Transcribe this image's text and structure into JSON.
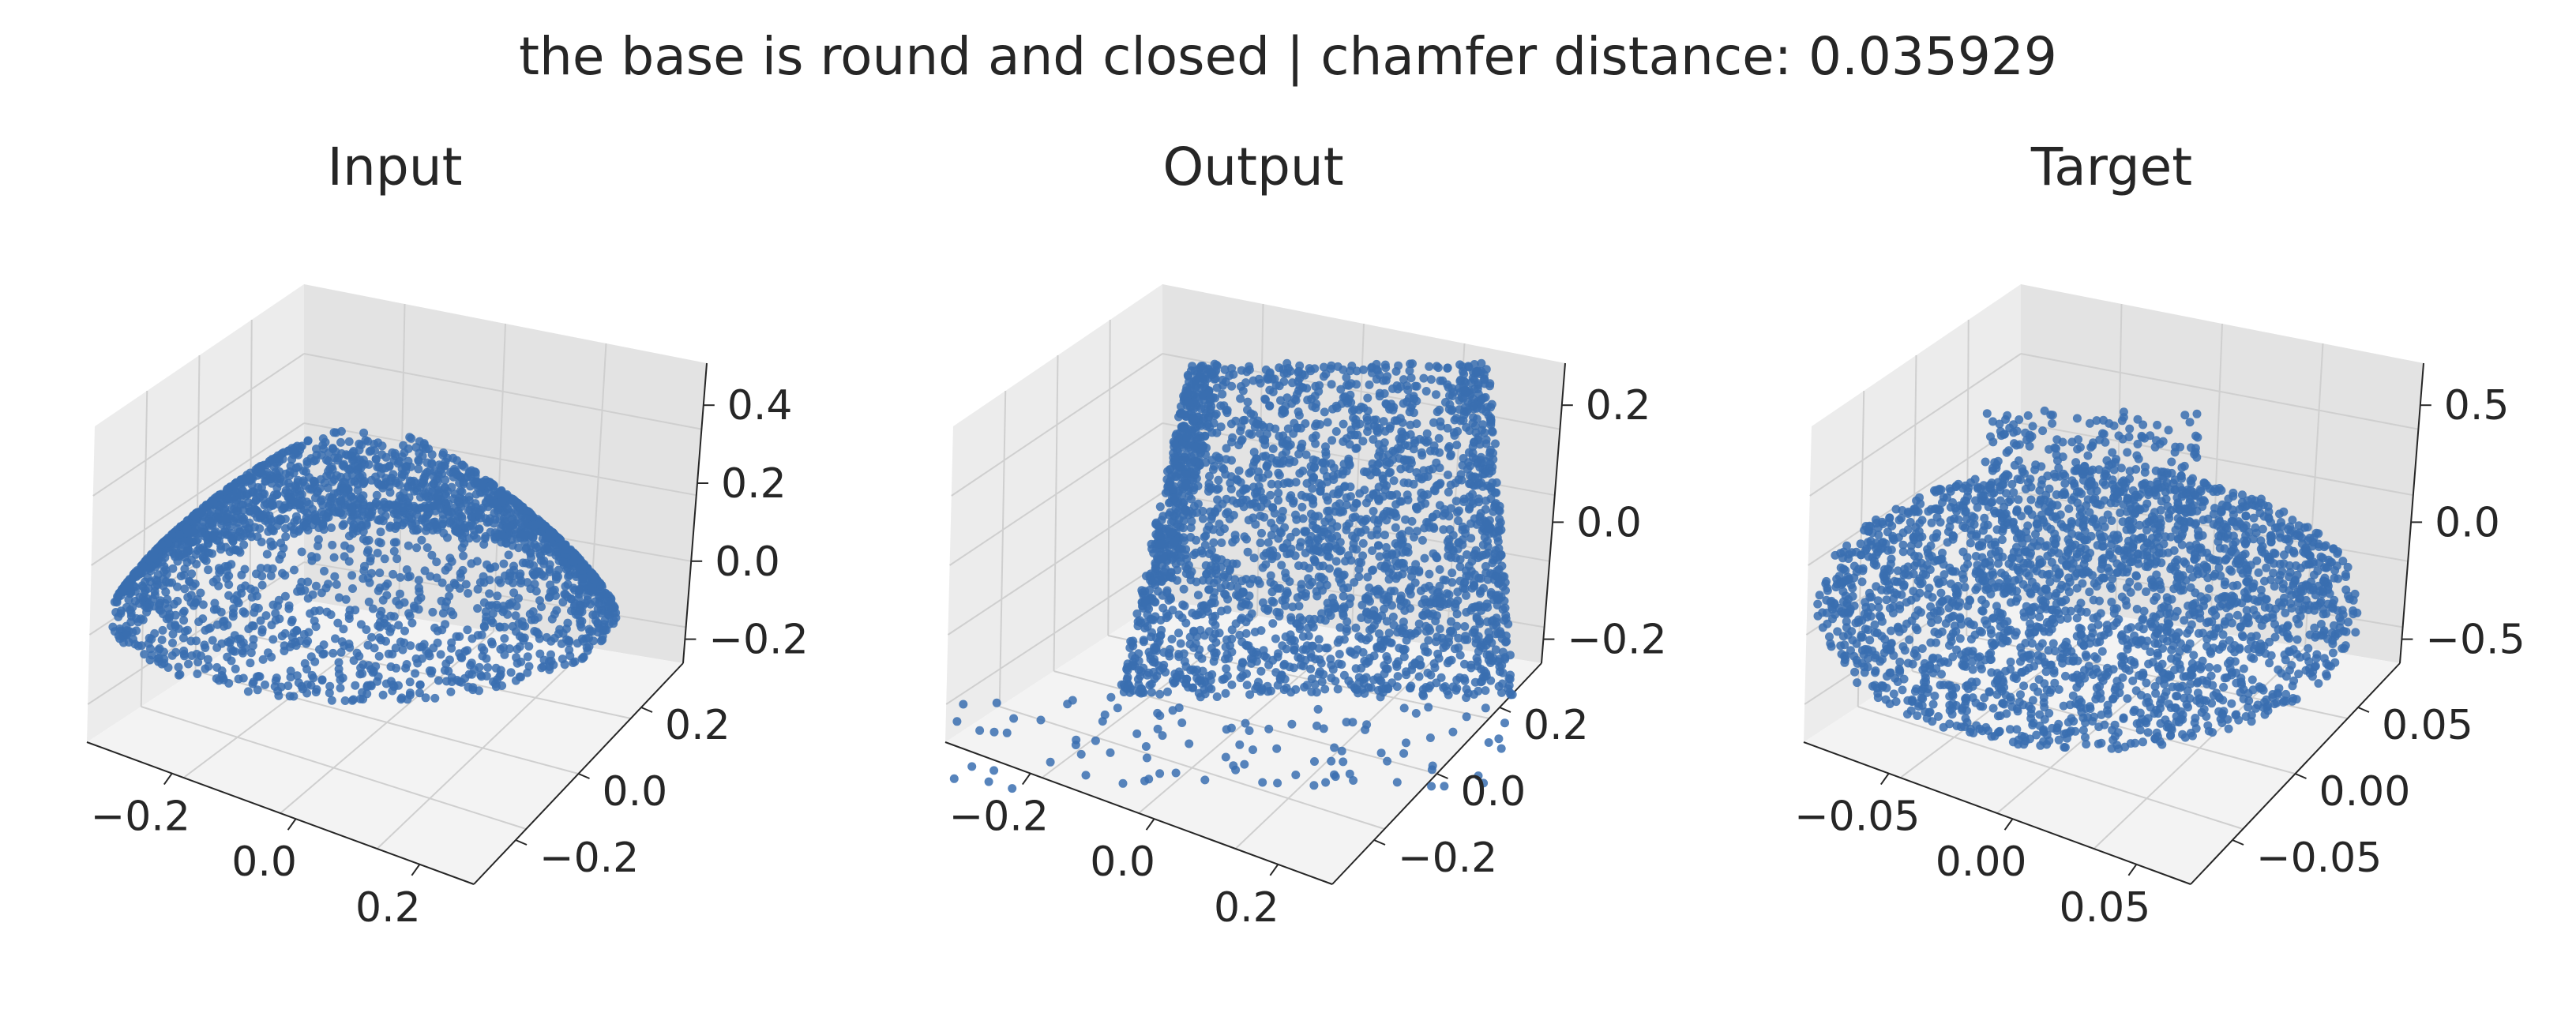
{
  "suptitle": "the base is round and closed | chamfer distance: 0.035929",
  "colors": {
    "points": "#3a6fb0",
    "pane_left": "#ececec",
    "pane_right": "#e3e3e3",
    "pane_floor": "#f3f3f3",
    "grid": "#cfcfcf",
    "axis": "#262626"
  },
  "chart_data": [
    {
      "type": "scatter",
      "subtype": "3d-point-cloud",
      "title": "Input",
      "shape": "dome",
      "x_ticks": [
        "−0.2",
        "0.0",
        "0.2"
      ],
      "y_ticks": [
        "−0.2",
        "0.0",
        "0.2"
      ],
      "z_ticks": [
        "−0.2",
        "0.0",
        "0.2",
        "0.4"
      ],
      "xlim": [
        -0.3,
        0.3
      ],
      "ylim": [
        -0.3,
        0.3
      ],
      "zlim": [
        -0.2,
        0.5
      ],
      "grid": true
    },
    {
      "type": "scatter",
      "subtype": "3d-point-cloud",
      "title": "Output",
      "shape": "noisy-dome",
      "x_ticks": [
        "−0.2",
        "0.0",
        "0.2"
      ],
      "y_ticks": [
        "−0.2",
        "0.0",
        "0.2"
      ],
      "z_ticks": [
        "−0.2",
        "0.0",
        "0.2"
      ],
      "xlim": [
        -0.3,
        0.3
      ],
      "ylim": [
        -0.3,
        0.3
      ],
      "zlim": [
        -0.25,
        0.25
      ],
      "grid": true
    },
    {
      "type": "scatter",
      "subtype": "3d-point-cloud",
      "title": "Target",
      "shape": "round-base",
      "x_ticks": [
        "−0.05",
        "0.00",
        "0.05"
      ],
      "y_ticks": [
        "−0.05",
        "0.00",
        "0.05"
      ],
      "z_ticks": [
        "−0.5",
        "0.0",
        "0.5"
      ],
      "xlim": [
        -0.08,
        0.08
      ],
      "ylim": [
        -0.08,
        0.08
      ],
      "zlim": [
        -0.5,
        0.55
      ],
      "grid": true
    }
  ]
}
